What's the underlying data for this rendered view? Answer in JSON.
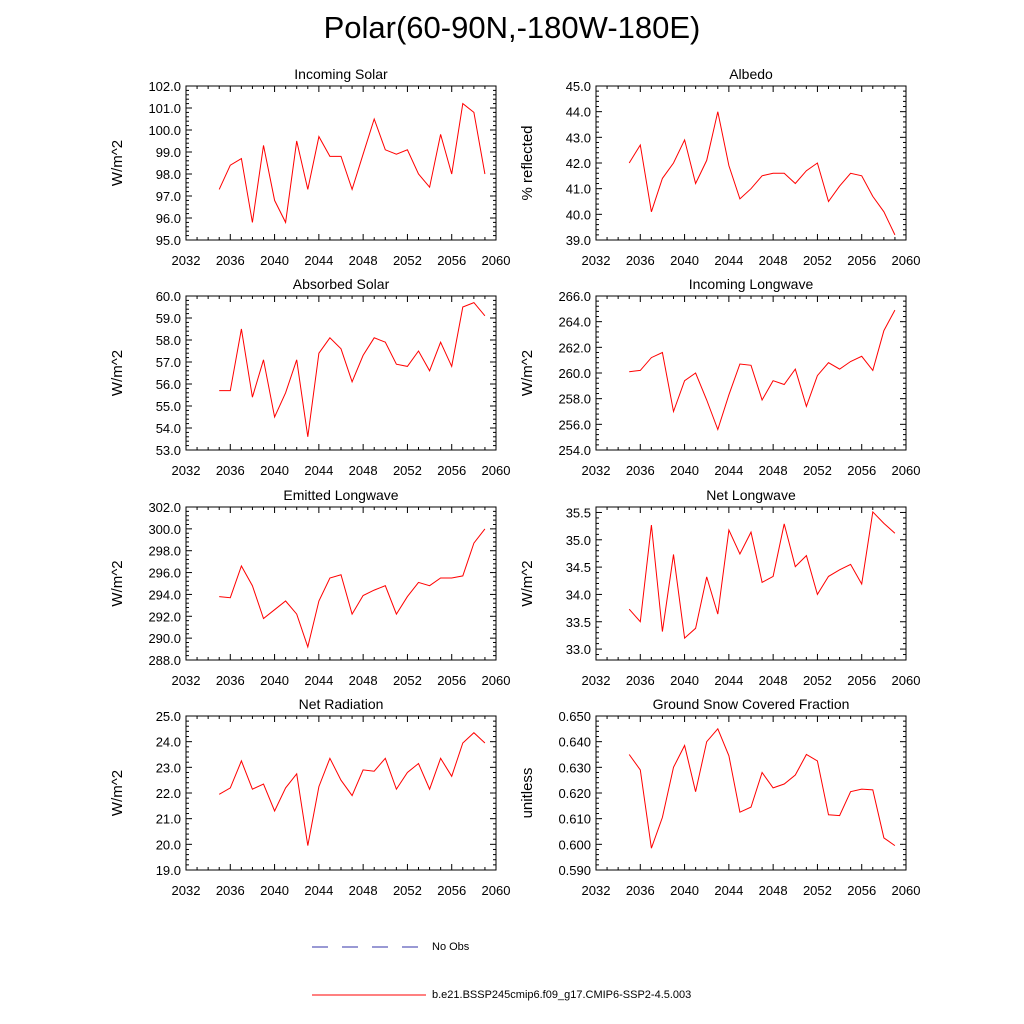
{
  "title": "Polar(60-90N,-180W-180E)",
  "colors": {
    "model": "#ff0000",
    "obs": "#3333aa",
    "axis": "#000000"
  },
  "legend": {
    "obs_label": "No Obs",
    "model_label": "b.e21.BSSP245cmip6.f09_g17.CMIP6-SSP2-4.5.003"
  },
  "chart_data": [
    {
      "type": "line",
      "title": "Incoming Solar",
      "xlabel": "",
      "ylabel": "W/m^2",
      "xlim": [
        2032,
        2060
      ],
      "ylim": [
        95.0,
        102.0
      ],
      "xticks": [
        2032,
        2036,
        2040,
        2044,
        2048,
        2052,
        2056,
        2060
      ],
      "yticks": [
        95.0,
        96.0,
        97.0,
        98.0,
        99.0,
        100.0,
        101.0,
        102.0
      ],
      "x": [
        2035,
        2036,
        2037,
        2038,
        2039,
        2040,
        2041,
        2042,
        2043,
        2044,
        2045,
        2046,
        2047,
        2048,
        2049,
        2050,
        2051,
        2052,
        2053,
        2054,
        2055,
        2056,
        2057,
        2058,
        2059
      ],
      "values": [
        97.3,
        98.4,
        98.7,
        95.8,
        99.3,
        96.8,
        95.8,
        99.5,
        97.3,
        99.7,
        98.8,
        98.8,
        97.3,
        98.9,
        100.5,
        99.1,
        98.9,
        99.1,
        98.0,
        97.4,
        99.8,
        98.0,
        101.2,
        100.8,
        98.0
      ]
    },
    {
      "type": "line",
      "title": "Albedo",
      "xlabel": "",
      "ylabel": "% reflected",
      "xlim": [
        2032,
        2060
      ],
      "ylim": [
        39.0,
        45.0
      ],
      "xticks": [
        2032,
        2036,
        2040,
        2044,
        2048,
        2052,
        2056,
        2060
      ],
      "yticks": [
        39.0,
        40.0,
        41.0,
        42.0,
        43.0,
        44.0,
        45.0
      ],
      "x": [
        2035,
        2036,
        2037,
        2038,
        2039,
        2040,
        2041,
        2042,
        2043,
        2044,
        2045,
        2046,
        2047,
        2048,
        2049,
        2050,
        2051,
        2052,
        2053,
        2054,
        2055,
        2056,
        2057,
        2058,
        2059
      ],
      "values": [
        42.0,
        42.7,
        40.1,
        41.4,
        42.0,
        42.9,
        41.2,
        42.1,
        44.0,
        41.9,
        40.6,
        41.0,
        41.5,
        41.6,
        41.6,
        41.2,
        41.7,
        42.0,
        40.5,
        41.1,
        41.6,
        41.5,
        40.7,
        40.1,
        39.2
      ]
    },
    {
      "type": "line",
      "title": "Absorbed Solar",
      "xlabel": "",
      "ylabel": "W/m^2",
      "xlim": [
        2032,
        2060
      ],
      "ylim": [
        53.0,
        60.0
      ],
      "xticks": [
        2032,
        2036,
        2040,
        2044,
        2048,
        2052,
        2056,
        2060
      ],
      "yticks": [
        53.0,
        54.0,
        55.0,
        56.0,
        57.0,
        58.0,
        59.0,
        60.0
      ],
      "x": [
        2035,
        2036,
        2037,
        2038,
        2039,
        2040,
        2041,
        2042,
        2043,
        2044,
        2045,
        2046,
        2047,
        2048,
        2049,
        2050,
        2051,
        2052,
        2053,
        2054,
        2055,
        2056,
        2057,
        2058,
        2059
      ],
      "values": [
        55.7,
        55.7,
        58.5,
        55.4,
        57.1,
        54.5,
        55.6,
        57.1,
        53.6,
        57.4,
        58.1,
        57.6,
        56.1,
        57.3,
        58.1,
        57.9,
        56.9,
        56.8,
        57.5,
        56.6,
        57.9,
        56.8,
        59.5,
        59.7,
        59.1
      ]
    },
    {
      "type": "line",
      "title": "Incoming Longwave",
      "xlabel": "",
      "ylabel": "W/m^2",
      "xlim": [
        2032,
        2060
      ],
      "ylim": [
        254.0,
        266.0
      ],
      "xticks": [
        2032,
        2036,
        2040,
        2044,
        2048,
        2052,
        2056,
        2060
      ],
      "yticks": [
        254.0,
        256.0,
        258.0,
        260.0,
        262.0,
        264.0,
        266.0
      ],
      "x": [
        2035,
        2036,
        2037,
        2038,
        2039,
        2040,
        2041,
        2042,
        2043,
        2044,
        2045,
        2046,
        2047,
        2048,
        2049,
        2050,
        2051,
        2052,
        2053,
        2054,
        2055,
        2056,
        2057,
        2058,
        2059
      ],
      "values": [
        260.1,
        260.2,
        261.2,
        261.6,
        257.0,
        259.4,
        260.0,
        257.9,
        255.6,
        258.3,
        260.7,
        260.6,
        257.9,
        259.4,
        259.1,
        260.3,
        257.4,
        259.8,
        260.8,
        260.3,
        260.9,
        261.3,
        260.2,
        263.3,
        264.9
      ]
    },
    {
      "type": "line",
      "title": "Emitted Longwave",
      "xlabel": "",
      "ylabel": "W/m^2",
      "xlim": [
        2032,
        2060
      ],
      "ylim": [
        288.0,
        302.0
      ],
      "xticks": [
        2032,
        2036,
        2040,
        2044,
        2048,
        2052,
        2056,
        2060
      ],
      "yticks": [
        288.0,
        290.0,
        292.0,
        294.0,
        296.0,
        298.0,
        300.0,
        302.0
      ],
      "x": [
        2035,
        2036,
        2037,
        2038,
        2039,
        2040,
        2041,
        2042,
        2043,
        2044,
        2045,
        2046,
        2047,
        2048,
        2049,
        2050,
        2051,
        2052,
        2053,
        2054,
        2055,
        2056,
        2057,
        2058,
        2059
      ],
      "values": [
        293.8,
        293.7,
        296.6,
        294.8,
        291.8,
        292.6,
        293.4,
        292.2,
        289.2,
        293.4,
        295.5,
        295.8,
        292.2,
        293.9,
        294.4,
        294.8,
        292.2,
        293.8,
        295.1,
        294.8,
        295.5,
        295.5,
        295.7,
        298.7,
        300.0
      ]
    },
    {
      "type": "line",
      "title": "Net Longwave",
      "xlabel": "",
      "ylabel": "W/m^2",
      "xlim": [
        2032,
        2060
      ],
      "ylim": [
        32.8,
        35.6
      ],
      "xticks": [
        2032,
        2036,
        2040,
        2044,
        2048,
        2052,
        2056,
        2060
      ],
      "yticks": [
        33.0,
        33.5,
        34.0,
        34.5,
        35.0,
        35.5
      ],
      "x": [
        2035,
        2036,
        2037,
        2038,
        2039,
        2040,
        2041,
        2042,
        2043,
        2044,
        2045,
        2046,
        2047,
        2048,
        2049,
        2050,
        2051,
        2052,
        2053,
        2054,
        2055,
        2056,
        2057,
        2058,
        2059
      ],
      "values": [
        33.73,
        33.5,
        35.27,
        33.32,
        34.73,
        33.2,
        33.38,
        34.32,
        33.64,
        35.18,
        34.74,
        35.14,
        34.22,
        34.33,
        35.29,
        34.51,
        34.71,
        34.0,
        34.33,
        34.45,
        34.55,
        34.19,
        35.51,
        35.3,
        35.12
      ]
    },
    {
      "type": "line",
      "title": "Net Radiation",
      "xlabel": "",
      "ylabel": "W/m^2",
      "xlim": [
        2032,
        2060
      ],
      "ylim": [
        19.0,
        25.0
      ],
      "xticks": [
        2032,
        2036,
        2040,
        2044,
        2048,
        2052,
        2056,
        2060
      ],
      "yticks": [
        19.0,
        20.0,
        21.0,
        22.0,
        23.0,
        24.0,
        25.0
      ],
      "x": [
        2035,
        2036,
        2037,
        2038,
        2039,
        2040,
        2041,
        2042,
        2043,
        2044,
        2045,
        2046,
        2047,
        2048,
        2049,
        2050,
        2051,
        2052,
        2053,
        2054,
        2055,
        2056,
        2057,
        2058,
        2059
      ],
      "values": [
        21.95,
        22.2,
        23.25,
        22.15,
        22.35,
        21.3,
        22.2,
        22.75,
        19.95,
        22.25,
        23.35,
        22.5,
        21.9,
        22.9,
        22.85,
        23.35,
        22.15,
        22.8,
        23.15,
        22.15,
        23.35,
        22.65,
        23.95,
        24.35,
        23.95
      ]
    },
    {
      "type": "line",
      "title": "Ground Snow Covered Fraction",
      "xlabel": "",
      "ylabel": "unitless",
      "xlim": [
        2032,
        2060
      ],
      "ylim": [
        0.59,
        0.65
      ],
      "xticks": [
        2032,
        2036,
        2040,
        2044,
        2048,
        2052,
        2056,
        2060
      ],
      "yticks": [
        0.59,
        0.6,
        0.61,
        0.62,
        0.63,
        0.64,
        0.65
      ],
      "x": [
        2035,
        2036,
        2037,
        2038,
        2039,
        2040,
        2041,
        2042,
        2043,
        2044,
        2045,
        2046,
        2047,
        2048,
        2049,
        2050,
        2051,
        2052,
        2053,
        2054,
        2055,
        2056,
        2057,
        2058,
        2059
      ],
      "values": [
        0.635,
        0.629,
        0.5985,
        0.6105,
        0.63,
        0.6385,
        0.6205,
        0.64,
        0.645,
        0.6345,
        0.6125,
        0.6145,
        0.628,
        0.622,
        0.6235,
        0.627,
        0.635,
        0.6325,
        0.6115,
        0.6112,
        0.6205,
        0.6215,
        0.6212,
        0.6025,
        0.5995
      ]
    }
  ]
}
